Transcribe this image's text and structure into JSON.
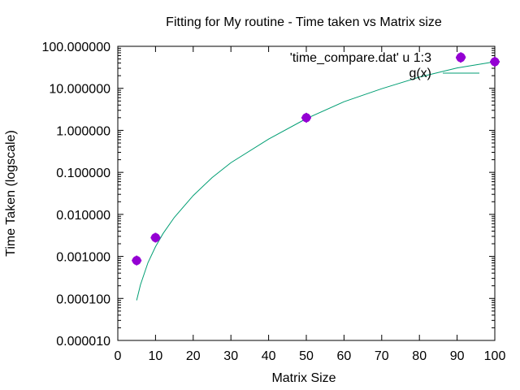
{
  "chart_data": {
    "type": "scatter",
    "title": "Fitting for My routine - Time taken vs Matrix size",
    "xlabel": "Matrix Size",
    "ylabel": "Time Taken (logscale)",
    "xlim": [
      0,
      100
    ],
    "ylim": [
      1e-05,
      100
    ],
    "yscale": "log",
    "grid": false,
    "legend_position": "top-right",
    "x_ticks": [
      "0",
      "10",
      "20",
      "30",
      "40",
      "50",
      "60",
      "70",
      "80",
      "90",
      "100"
    ],
    "y_ticks": [
      "100.000000",
      "10.000000",
      "1.000000",
      "0.100000",
      "0.010000",
      "0.001000",
      "0.000100",
      "0.000010"
    ],
    "series": [
      {
        "name": "'time_compare.dat' u 1:3",
        "kind": "points",
        "color": "#9400d3",
        "x": [
          5,
          10,
          50,
          91,
          100
        ],
        "y": [
          0.0008,
          0.0028,
          2.0,
          55,
          43
        ]
      },
      {
        "name": "g(x)",
        "kind": "line",
        "color": "#009e73",
        "x": [
          5,
          6,
          8,
          10,
          12,
          15,
          20,
          25,
          30,
          40,
          50,
          60,
          70,
          80,
          90,
          100
        ],
        "y": [
          9e-05,
          0.00021,
          0.00071,
          0.0017,
          0.0035,
          0.0085,
          0.028,
          0.075,
          0.17,
          0.62,
          1.9,
          4.8,
          9.8,
          18.5,
          30.5,
          43
        ]
      }
    ]
  }
}
